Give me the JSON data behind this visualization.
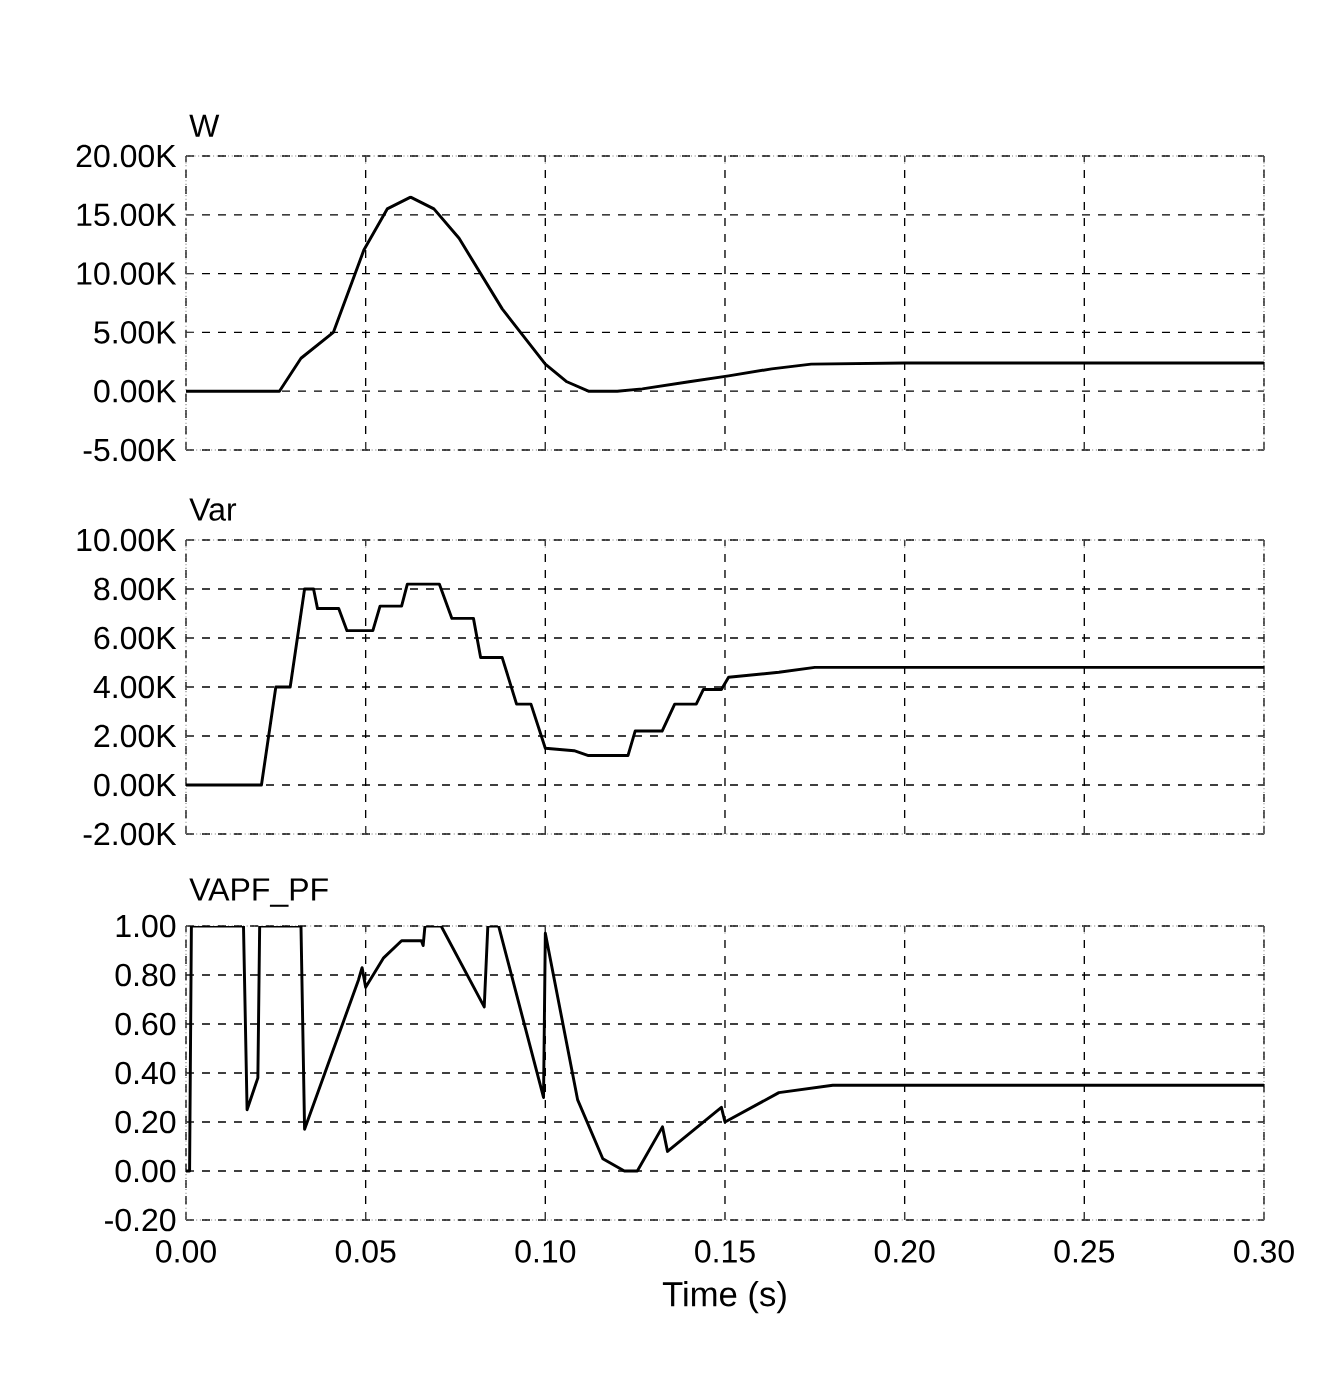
{
  "chart_data": [
    {
      "type": "line",
      "title": "W",
      "color": "#000000",
      "marker": "none",
      "line_style": "solid",
      "grid": true,
      "tick_labels": "y",
      "x": [
        0,
        0.026,
        0.032,
        0.041,
        0.0495,
        0.056,
        0.0625,
        0.069,
        0.076,
        0.088,
        0.1,
        0.106,
        0.112,
        0.12,
        0.127,
        0.14,
        0.151,
        0.163,
        0.174,
        0.2,
        0.3
      ],
      "values": [
        0,
        0,
        2800,
        5000,
        12000,
        15500,
        16500,
        15500,
        13000,
        7000,
        2300,
        800,
        0,
        0,
        200,
        800,
        1300,
        1900,
        2300,
        2400,
        2400
      ],
      "xlim": [
        0,
        0.3
      ],
      "ylim": [
        -5000,
        20000
      ],
      "xticks": [
        0,
        0.05,
        0.1,
        0.15,
        0.2,
        0.25,
        0.3
      ],
      "yticks": [
        {
          "value": -5000,
          "label": "-5.00K"
        },
        {
          "value": 0,
          "label": "0.00K"
        },
        {
          "value": 5000,
          "label": "5.00K"
        },
        {
          "value": 10000,
          "label": "10.00K"
        },
        {
          "value": 15000,
          "label": "15.00K"
        },
        {
          "value": 20000,
          "label": "20.00K"
        }
      ]
    },
    {
      "type": "line",
      "title": "Var",
      "color": "#000000",
      "marker": "none",
      "line_style": "solid",
      "grid": true,
      "tick_labels": "y",
      "x": [
        0,
        0.021,
        0.025,
        0.029,
        0.033,
        0.0355,
        0.0366,
        0.0425,
        0.0448,
        0.052,
        0.054,
        0.06,
        0.0616,
        0.0705,
        0.074,
        0.08,
        0.082,
        0.088,
        0.092,
        0.096,
        0.1,
        0.108,
        0.112,
        0.123,
        0.125,
        0.1325,
        0.136,
        0.142,
        0.144,
        0.149,
        0.151,
        0.165,
        0.175,
        0.3
      ],
      "values": [
        0,
        0,
        4000,
        4000,
        8000,
        8000,
        7200,
        7200,
        6300,
        6300,
        7300,
        7300,
        8200,
        8200,
        6800,
        6800,
        5200,
        5200,
        3300,
        3300,
        1500,
        1400,
        1200,
        1200,
        2200,
        2200,
        3300,
        3300,
        3900,
        3900,
        4400,
        4600,
        4800,
        4800
      ],
      "xlim": [
        0,
        0.3
      ],
      "ylim": [
        -2000,
        10000
      ],
      "xticks": [
        0,
        0.05,
        0.1,
        0.15,
        0.2,
        0.25,
        0.3
      ],
      "yticks": [
        {
          "value": -2000,
          "label": "-2.00K"
        },
        {
          "value": 0,
          "label": "0.00K"
        },
        {
          "value": 2000,
          "label": "2.00K"
        },
        {
          "value": 4000,
          "label": "4.00K"
        },
        {
          "value": 6000,
          "label": "6.00K"
        },
        {
          "value": 8000,
          "label": "8.00K"
        },
        {
          "value": 10000,
          "label": "10.00K"
        }
      ]
    },
    {
      "type": "line",
      "title": "VAPF_PF",
      "xlabel": "Time (s)",
      "color": "#000000",
      "marker": "none",
      "line_style": "solid",
      "grid": true,
      "x": [
        0,
        0.001,
        0.0015,
        0.016,
        0.017,
        0.02,
        0.0205,
        0.032,
        0.033,
        0.048,
        0.049,
        0.05,
        0.055,
        0.06,
        0.0655,
        0.066,
        0.0665,
        0.071,
        0.083,
        0.084,
        0.087,
        0.0995,
        0.1,
        0.109,
        0.116,
        0.122,
        0.1256,
        0.1326,
        0.134,
        0.149,
        0.15,
        0.165,
        0.18,
        0.3
      ],
      "values": [
        0,
        0,
        1,
        1,
        0.25,
        0.38,
        1,
        1,
        0.17,
        0.78,
        0.83,
        0.75,
        0.87,
        0.94,
        0.94,
        0.92,
        1,
        1,
        0.67,
        1,
        1,
        0.3,
        0.97,
        0.29,
        0.05,
        0,
        0,
        0.18,
        0.08,
        0.26,
        0.2,
        0.32,
        0.35,
        0.35
      ],
      "xlim": [
        0,
        0.3
      ],
      "ylim": [
        -0.2,
        1
      ],
      "xticks": [
        {
          "value": 0,
          "label": "0.00"
        },
        {
          "value": 0.05,
          "label": "0.05"
        },
        {
          "value": 0.1,
          "label": "0.10"
        },
        {
          "value": 0.15,
          "label": "0.15"
        },
        {
          "value": 0.2,
          "label": "0.20"
        },
        {
          "value": 0.25,
          "label": "0.25"
        },
        {
          "value": 0.3,
          "label": "0.30"
        }
      ],
      "yticks": [
        {
          "value": -0.2,
          "label": "-0.20"
        },
        {
          "value": 0,
          "label": "0.00"
        },
        {
          "value": 0.2,
          "label": "0.20"
        },
        {
          "value": 0.4,
          "label": "0.40"
        },
        {
          "value": 0.6,
          "label": "0.60"
        },
        {
          "value": 0.8,
          "label": "0.80"
        },
        {
          "value": 1,
          "label": "1.00"
        }
      ]
    }
  ]
}
